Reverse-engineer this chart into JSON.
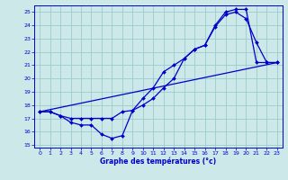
{
  "xlabel": "Graphe des températures (°c)",
  "xlim": [
    -0.5,
    23.5
  ],
  "ylim": [
    14.8,
    25.5
  ],
  "yticks": [
    15,
    16,
    17,
    18,
    19,
    20,
    21,
    22,
    23,
    24,
    25
  ],
  "xticks": [
    0,
    1,
    2,
    3,
    4,
    5,
    6,
    7,
    8,
    9,
    10,
    11,
    12,
    13,
    14,
    15,
    16,
    17,
    18,
    19,
    20,
    21,
    22,
    23
  ],
  "bg_color": "#cce8e8",
  "grid_color": "#99cccc",
  "line_color": "#0000cc",
  "line1_x": [
    0,
    1,
    2,
    3,
    4,
    5,
    6,
    7,
    8,
    9,
    10,
    11,
    12,
    13,
    14,
    15,
    16,
    17,
    18,
    19,
    20,
    21,
    22,
    23
  ],
  "line1_y": [
    17.5,
    17.5,
    17.2,
    16.7,
    16.5,
    16.5,
    15.8,
    15.5,
    15.7,
    17.6,
    18.5,
    19.3,
    20.5,
    21.0,
    21.5,
    22.2,
    22.5,
    23.9,
    24.8,
    25.0,
    24.5,
    22.7,
    21.2,
    21.2
  ],
  "line2_x": [
    0,
    1,
    2,
    3,
    4,
    5,
    6,
    7,
    8,
    9,
    10,
    11,
    12,
    13,
    14,
    15,
    16,
    17,
    18,
    19,
    20,
    21,
    22,
    23
  ],
  "line2_y": [
    17.5,
    17.5,
    17.2,
    17.0,
    17.0,
    17.0,
    17.0,
    17.0,
    17.5,
    17.6,
    18.0,
    18.5,
    19.3,
    20.0,
    21.5,
    22.2,
    22.5,
    24.0,
    25.0,
    25.2,
    25.2,
    21.2,
    21.2,
    21.2
  ],
  "line3_x": [
    0,
    23
  ],
  "line3_y": [
    17.5,
    21.2
  ],
  "marker": "D",
  "markersize": 2.0,
  "linewidth": 0.9
}
